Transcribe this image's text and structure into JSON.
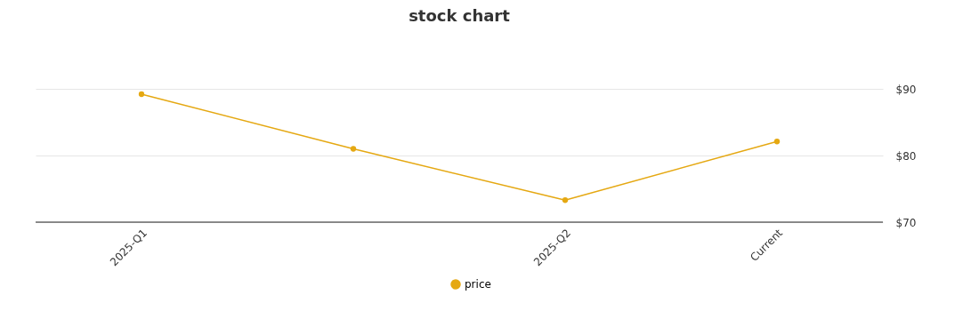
{
  "chart_data": {
    "type": "line",
    "title": "stock chart",
    "categories": [
      "2025-Q1",
      null,
      "2025-Q2",
      "Current"
    ],
    "series": [
      {
        "name": "price",
        "color": "#e5a812",
        "values": [
          89.2,
          81.0,
          73.3,
          82.1
        ]
      }
    ],
    "ylim": [
      70,
      90
    ],
    "yticks": [
      {
        "value": 70,
        "label": "$70"
      },
      {
        "value": 80,
        "label": "$80"
      },
      {
        "value": 90,
        "label": "$90"
      }
    ],
    "grid": "y",
    "legend": "bottom",
    "marker": "circle",
    "line_style": "solid"
  }
}
